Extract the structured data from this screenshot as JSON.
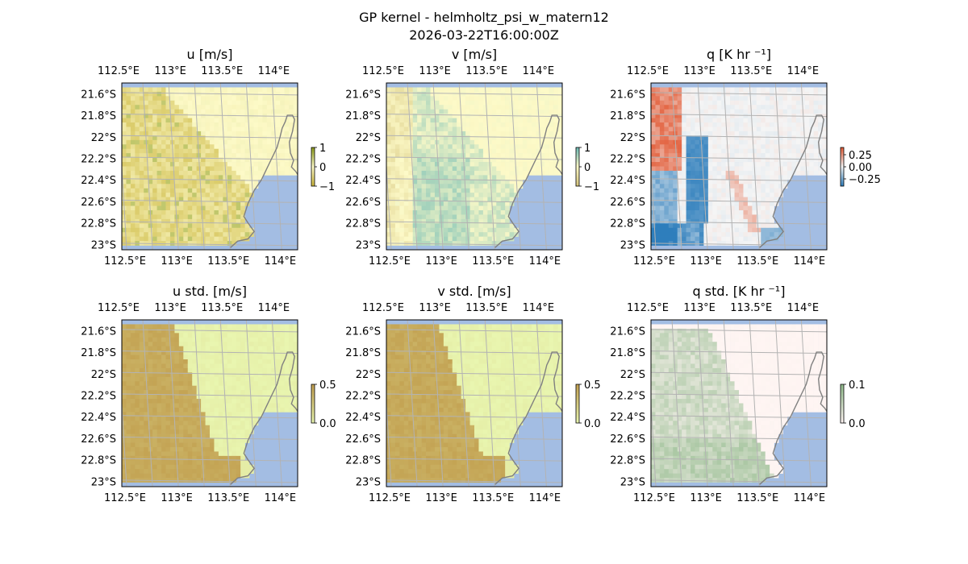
{
  "figure": {
    "title_line1": "GP kernel - helmholtz_psi_w_matern12",
    "title_line2": "2026-03-22T16:00:00Z"
  },
  "colors": {
    "ocean": "#a3bde3",
    "grid": "#b3b3b3",
    "coast": "#808080",
    "u_mid": "#fdfac8",
    "u_neg": "#c9b43a",
    "u_pos": "#8a9a1a",
    "v_mid": "#fdfac8",
    "v_neg": "#d3c27a",
    "v_pos": "#6ab8b4",
    "q_mid": "#f5f5f5",
    "q_pos": "#e25a35",
    "q_neg": "#2e7ebc",
    "std_low": "#e9f6b0",
    "std_high": "#c2a050",
    "qstd_low": "#fff5f3",
    "qstd_high": "#8fb98a"
  },
  "chart_data": [
    {
      "type": "heatmap",
      "title": "u [m/s]",
      "x_ticks": [
        "112.5°E",
        "113°E",
        "113.5°E",
        "114°E"
      ],
      "y_ticks": [
        "21.6°S",
        "21.8°S",
        "22°S",
        "22.2°S",
        "22.4°S",
        "22.6°S",
        "22.8°S",
        "23°S"
      ],
      "xlim": [
        112.5,
        114.2
      ],
      "ylim": [
        -23.05,
        -21.5
      ],
      "colorbar": {
        "ticks": [
          "1",
          "0",
          "−1"
        ],
        "range": [
          -1,
          1
        ]
      },
      "colormap": [
        "u_neg",
        "u_mid",
        "u_pos"
      ],
      "field": "u"
    },
    {
      "type": "heatmap",
      "title": "v [m/s]",
      "x_ticks": [
        "112.5°E",
        "113°E",
        "113.5°E",
        "114°E"
      ],
      "y_ticks": [
        "21.6°S",
        "21.8°S",
        "22°S",
        "22.2°S",
        "22.4°S",
        "22.6°S",
        "22.8°S",
        "23°S"
      ],
      "xlim": [
        112.5,
        114.2
      ],
      "ylim": [
        -23.05,
        -21.5
      ],
      "colorbar": {
        "ticks": [
          "1",
          "0",
          "−1"
        ],
        "range": [
          -1,
          1
        ]
      },
      "colormap": [
        "v_neg",
        "v_mid",
        "v_pos"
      ],
      "field": "v"
    },
    {
      "type": "heatmap",
      "title": "q [K hr ⁻¹]",
      "x_ticks": [
        "112.5°E",
        "113°E",
        "113.5°E",
        "114°E"
      ],
      "y_ticks": [
        "21.6°S",
        "21.8°S",
        "22°S",
        "22.2°S",
        "22.4°S",
        "22.6°S",
        "22.8°S",
        "23°S"
      ],
      "xlim": [
        112.5,
        114.2
      ],
      "ylim": [
        -23.05,
        -21.5
      ],
      "colorbar": {
        "ticks": [
          "0.25",
          "0.00",
          "−0.25"
        ],
        "range": [
          -0.35,
          0.35
        ]
      },
      "colormap": [
        "q_neg",
        "q_mid",
        "q_pos"
      ],
      "field": "q"
    },
    {
      "type": "heatmap",
      "title": "u std. [m/s]",
      "x_ticks": [
        "112.5°E",
        "113°E",
        "113.5°E",
        "114°E"
      ],
      "y_ticks": [
        "21.6°S",
        "21.8°S",
        "22°S",
        "22.2°S",
        "22.4°S",
        "22.6°S",
        "22.8°S",
        "23°S"
      ],
      "xlim": [
        112.5,
        114.2
      ],
      "ylim": [
        -23.05,
        -21.5
      ],
      "colorbar": {
        "ticks": [
          "0.5",
          "0.0"
        ],
        "range": [
          0,
          0.5
        ]
      },
      "colormap": [
        "std_low",
        "std_high"
      ],
      "field": "ustd"
    },
    {
      "type": "heatmap",
      "title": "v std. [m/s]",
      "x_ticks": [
        "112.5°E",
        "113°E",
        "113.5°E",
        "114°E"
      ],
      "y_ticks": [
        "21.6°S",
        "21.8°S",
        "22°S",
        "22.2°S",
        "22.4°S",
        "22.6°S",
        "22.8°S",
        "23°S"
      ],
      "xlim": [
        112.5,
        114.2
      ],
      "ylim": [
        -23.05,
        -21.5
      ],
      "colorbar": {
        "ticks": [
          "0.5",
          "0.0"
        ],
        "range": [
          0,
          0.5
        ]
      },
      "colormap": [
        "std_low",
        "std_high"
      ],
      "field": "vstd"
    },
    {
      "type": "heatmap",
      "title": "q std. [K hr ⁻¹]",
      "x_ticks": [
        "112.5°E",
        "113°E",
        "113.5°E",
        "114°E"
      ],
      "y_ticks": [
        "21.6°S",
        "21.8°S",
        "22°S",
        "22.2°S",
        "22.4°S",
        "22.6°S",
        "22.8°S",
        "23°S"
      ],
      "xlim": [
        112.5,
        114.2
      ],
      "ylim": [
        -23.05,
        -21.5
      ],
      "colorbar": {
        "ticks": [
          "0.1",
          "0.0"
        ],
        "range": [
          0,
          0.12
        ]
      },
      "colormap": [
        "qstd_low",
        "qstd_high"
      ],
      "field": "qstd"
    }
  ]
}
